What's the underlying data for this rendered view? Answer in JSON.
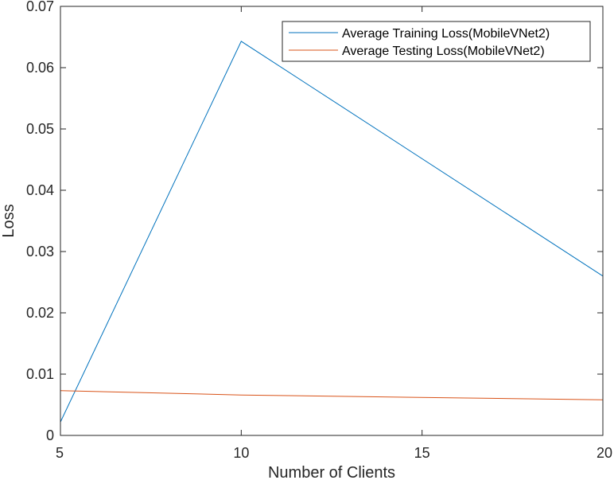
{
  "chart_data": {
    "type": "line",
    "title": "",
    "xlabel": "Number of Clients",
    "ylabel": "Loss",
    "xlim": [
      5,
      20
    ],
    "ylim": [
      0,
      0.07
    ],
    "xticks": [
      5,
      10,
      15,
      20
    ],
    "xtick_labels": [
      "5",
      "10",
      "15",
      "20"
    ],
    "yticks": [
      0,
      0.01,
      0.02,
      0.03,
      0.04,
      0.05,
      0.06,
      0.07
    ],
    "ytick_labels": [
      "0",
      "0.01",
      "0.02",
      "0.03",
      "0.04",
      "0.05",
      "0.06",
      "0.07"
    ],
    "grid": false,
    "legend_position": "top-right",
    "x": [
      5,
      10,
      20
    ],
    "series": [
      {
        "name": "Average Training Loss(MobileVNet2)",
        "color": "#0072bd",
        "values": [
          0.0022,
          0.0643,
          0.026
        ]
      },
      {
        "name": "Average Testing Loss(MobileVNet2)",
        "color": "#d95319",
        "values": [
          0.0073,
          0.0066,
          0.0058
        ]
      }
    ]
  }
}
